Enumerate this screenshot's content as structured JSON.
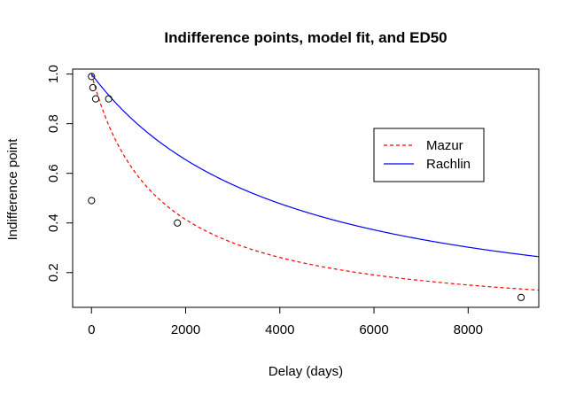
{
  "chart_data": {
    "type": "scatter",
    "title": "Indifference points, model fit, and ED50",
    "xlabel": "Delay (days)",
    "ylabel": "Indifference point",
    "xlim": [
      -400,
      9500
    ],
    "ylim": [
      0.06,
      1.02
    ],
    "x_ticks": [
      0,
      2000,
      4000,
      6000,
      8000
    ],
    "y_ticks": [
      0.2,
      0.4,
      0.6,
      0.8,
      1.0
    ],
    "x_tick_labels": [
      "0",
      "2000",
      "4000",
      "6000",
      "8000"
    ],
    "y_tick_labels": [
      "0.2",
      "0.4",
      "0.6",
      "0.8",
      "1.0"
    ],
    "points": [
      {
        "x": 1,
        "y": 0.99
      },
      {
        "x": 1,
        "y": 0.49
      },
      {
        "x": 30,
        "y": 0.945
      },
      {
        "x": 90,
        "y": 0.9
      },
      {
        "x": 365,
        "y": 0.9
      },
      {
        "x": 1825,
        "y": 0.4
      },
      {
        "x": 9125,
        "y": 0.1
      }
    ],
    "series": [
      {
        "name": "Mazur",
        "color": "#ff0000",
        "dash": "dashed",
        "model": "hyperbolic",
        "k": 0.000708
      },
      {
        "name": "Rachlin",
        "color": "#0000ff",
        "dash": "solid",
        "model": "hyperboloid",
        "k": 0.000205,
        "s": 1.232
      }
    ],
    "legend_position": "right",
    "grid": false
  }
}
